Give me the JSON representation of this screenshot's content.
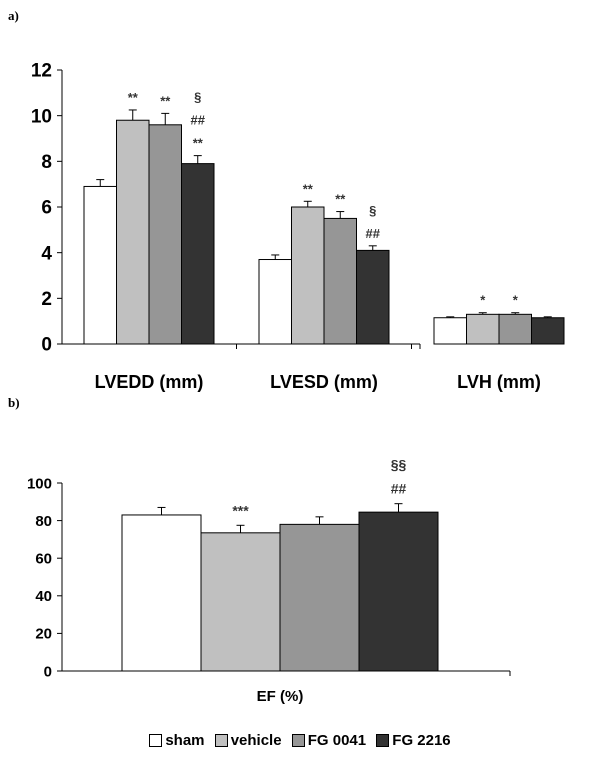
{
  "panels": {
    "a_label": "a)",
    "b_label": "b)"
  },
  "legend": [
    {
      "name": "sham",
      "color": "#ffffff"
    },
    {
      "name": "vehicle",
      "color": "#c0c0c0"
    },
    {
      "name": "FG 0041",
      "color": "#969696"
    },
    {
      "name": "FG 2216",
      "color": "#333333"
    }
  ],
  "chart_data": [
    {
      "type": "bar",
      "panel": "a",
      "categories": [
        "LVEDD (mm)",
        "LVESD (mm)",
        "LVH (mm)"
      ],
      "ylim": [
        0,
        12
      ],
      "yticks": [
        0,
        2,
        4,
        6,
        8,
        10,
        12
      ],
      "grid": false,
      "series": [
        {
          "name": "sham",
          "values": [
            6.9,
            3.7,
            1.15
          ],
          "errors": [
            0.3,
            0.2,
            0.04
          ]
        },
        {
          "name": "vehicle",
          "values": [
            9.8,
            6.0,
            1.3
          ],
          "errors": [
            0.45,
            0.25,
            0.07
          ]
        },
        {
          "name": "FG 0041",
          "values": [
            9.6,
            5.5,
            1.3
          ],
          "errors": [
            0.5,
            0.3,
            0.07
          ]
        },
        {
          "name": "FG 2216",
          "values": [
            7.9,
            4.1,
            1.15
          ],
          "errors": [
            0.35,
            0.2,
            0.04
          ]
        }
      ],
      "annotations": [
        {
          "category": 0,
          "series": 1,
          "lines": [
            "**"
          ]
        },
        {
          "category": 0,
          "series": 2,
          "lines": [
            "**"
          ]
        },
        {
          "category": 0,
          "series": 3,
          "lines": [
            "§",
            "##",
            "**"
          ]
        },
        {
          "category": 1,
          "series": 1,
          "lines": [
            "**"
          ]
        },
        {
          "category": 1,
          "series": 2,
          "lines": [
            "**"
          ]
        },
        {
          "category": 1,
          "series": 3,
          "lines": [
            "§",
            "##"
          ]
        },
        {
          "category": 2,
          "series": 1,
          "lines": [
            "*"
          ]
        },
        {
          "category": 2,
          "series": 2,
          "lines": [
            "*"
          ]
        }
      ],
      "legend_position": "bottom"
    },
    {
      "type": "bar",
      "panel": "b",
      "categories": [
        "EF (%)"
      ],
      "ylim": [
        0,
        100
      ],
      "yticks": [
        0,
        20,
        40,
        60,
        80,
        100
      ],
      "grid": false,
      "series": [
        {
          "name": "sham",
          "values": [
            83
          ],
          "errors": [
            4
          ]
        },
        {
          "name": "vehicle",
          "values": [
            73.5
          ],
          "errors": [
            4
          ]
        },
        {
          "name": "FG 0041",
          "values": [
            78
          ],
          "errors": [
            4
          ]
        },
        {
          "name": "FG 2216",
          "values": [
            84.5
          ],
          "errors": [
            4.5
          ]
        }
      ],
      "annotations": [
        {
          "category": 0,
          "series": 1,
          "lines": [
            "***"
          ]
        },
        {
          "category": 0,
          "series": 3,
          "lines": [
            "§§",
            "##"
          ]
        }
      ],
      "legend_position": "bottom"
    }
  ]
}
